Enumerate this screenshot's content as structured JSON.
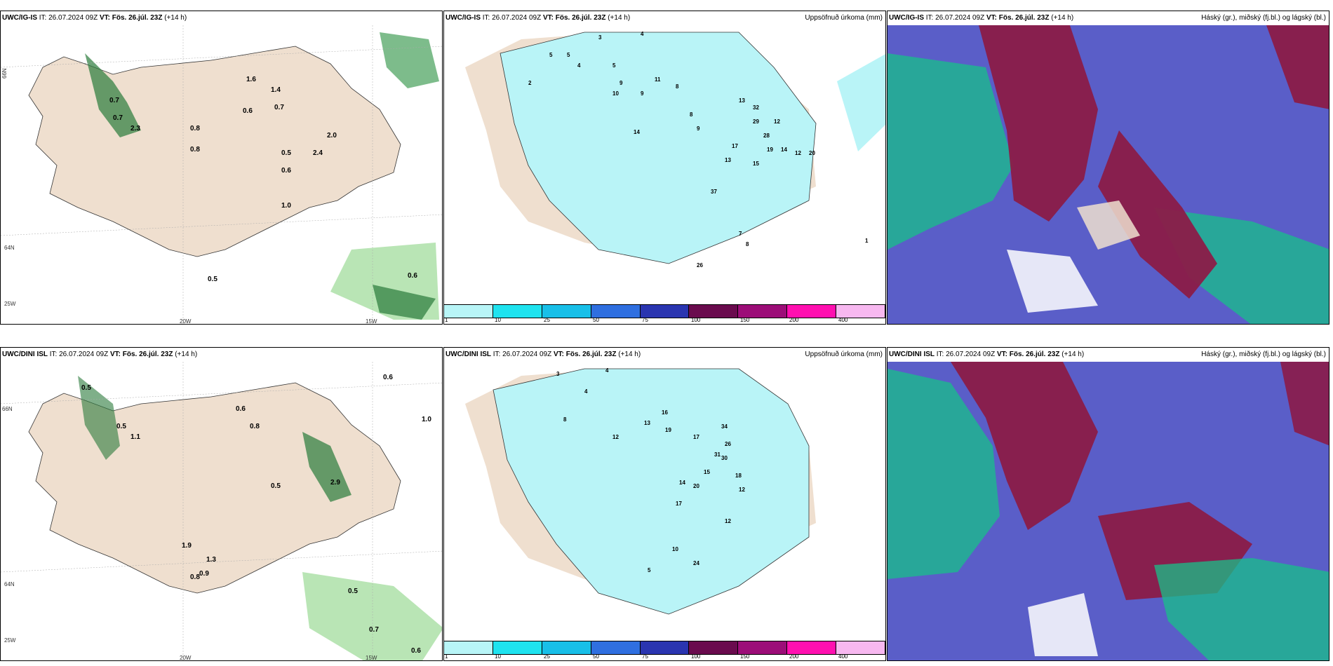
{
  "panels": [
    {
      "model": "UWC/IG-IS",
      "it": "IT: 26.07.2024 09Z",
      "vt": "VT: Fös. 26.júl. 23Z",
      "lead": "(+14 h)",
      "right": ""
    },
    {
      "model": "UWC/IG-IS",
      "it": "IT: 26.07.2024 09Z",
      "vt": "VT: Fös. 26.júl. 23Z",
      "lead": "(+14 h)",
      "right": "Uppsöfnuð úrkoma (mm)"
    },
    {
      "model": "UWC/IG-IS",
      "it": "IT: 26.07.2024 09Z",
      "vt": "VT: Fös. 26.júl. 23Z",
      "lead": "(+14 h)",
      "right": "Háský (gr.), miðský (fj.bl.) og lágský (bl.)"
    },
    {
      "model": "UWC/DINI ISL",
      "it": "IT: 26.07.2024 09Z",
      "vt": "VT: Fös. 26.júl. 23Z",
      "lead": "(+14 h)",
      "right": ""
    },
    {
      "model": "UWC/DINI ISL",
      "it": "IT: 26.07.2024 09Z",
      "vt": "VT: Fös. 26.júl. 23Z",
      "lead": "(+14 h)",
      "right": "Uppsöfnuð úrkoma (mm)"
    },
    {
      "model": "UWC/DINI ISL",
      "it": "IT: 26.07.2024 09Z",
      "vt": "VT: Fös. 26.júl. 23Z",
      "lead": "(+14 h)",
      "right": "Háský (gr.), miðský (fj.bl.) og lágský (bl.)"
    }
  ],
  "axis_labels": {
    "lat66": "66N",
    "lat64": "64N",
    "lat25w": "25W",
    "lon20w": "20W",
    "lon15w": "15W"
  },
  "colorbar": {
    "ticks": [
      "1",
      "10",
      "25",
      "50",
      "75",
      "100",
      "150",
      "200",
      "400"
    ],
    "colors": [
      "#b8f5f7",
      "#1fe3ef",
      "#18bfe8",
      "#2f6fe0",
      "#2a35b0",
      "#6a0b4e",
      "#9c0d78",
      "#ff10b0",
      "#f7b8f0"
    ]
  },
  "precip_labels_top": [
    "3",
    "4",
    "5",
    "5",
    "4",
    "2",
    "5",
    "9",
    "10",
    "9",
    "11",
    "8",
    "14",
    "8",
    "9",
    "13",
    "32",
    "29",
    "12",
    "28",
    "19",
    "14",
    "12",
    "20",
    "17",
    "13",
    "15",
    "37",
    "26",
    "7",
    "8",
    "1"
  ],
  "precip_labels_bottom": [
    "3",
    "4",
    "4",
    "12",
    "13",
    "16",
    "19",
    "17",
    "34",
    "26",
    "30",
    "31",
    "14",
    "20",
    "17",
    "15",
    "18",
    "12",
    "24",
    "10",
    "5",
    "12",
    "8"
  ],
  "wind_values_top": [
    "0.7",
    "0.7",
    "0.8",
    "2.3",
    "1.6",
    "1.4",
    "0.7",
    "0.6",
    "2.0",
    "0.5",
    "2.4",
    "0.6",
    "1.0",
    "0.5",
    "0.6",
    "0.8"
  ],
  "wind_values_bottom": [
    "0.5",
    "0.6",
    "0.8",
    "0.5",
    "1.1",
    "2.9",
    "0.5",
    "1.9",
    "1.3",
    "0.9",
    "0.8",
    "0.5",
    "0.6",
    "0.7",
    "0.6",
    "1.0"
  ],
  "colors": {
    "land": "#efdfcf",
    "precip": "#b9f4f7",
    "cloud_high": "#8b1b48",
    "cloud_mid": "#18c08a",
    "cloud_low": "#5a5ec8"
  }
}
